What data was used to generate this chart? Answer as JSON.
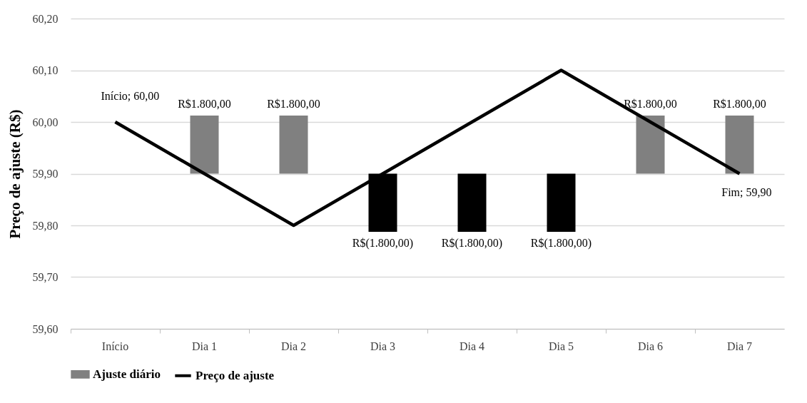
{
  "chart_data": {
    "type": "bar",
    "ylabel": "Preço de ajuste (R$)",
    "categories": [
      "Início",
      "Dia 1",
      "Dia 2",
      "Dia 3",
      "Dia 4",
      "Dia 5",
      "Dia 6",
      "Dia 7"
    ],
    "series": [
      {
        "name": "Ajuste diário",
        "axis": "y2",
        "color": "#808080",
        "colors": [
          null,
          "#808080",
          "#808080",
          "#000000",
          "#000000",
          "#000000",
          "#808080",
          "#808080"
        ],
        "values": [
          null,
          1800,
          1800,
          -1800,
          -1800,
          -1800,
          1800,
          1800
        ],
        "value_labels": [
          null,
          "R$1.800,00",
          "R$1.800,00",
          "R$(1.800,00)",
          "R$(1.800,00)",
          "R$(1.800,00)",
          "R$1.800,00",
          "R$1.800,00"
        ]
      },
      {
        "name": "Preço de ajuste",
        "type": "line",
        "color": "#000000",
        "values": [
          60.0,
          59.9,
          59.8,
          59.9,
          60.0,
          60.1,
          60.0,
          59.9
        ]
      }
    ],
    "ylim": [
      59.6,
      60.2
    ],
    "yticks": [
      {
        "value": 59.6,
        "label": "59,60"
      },
      {
        "value": 59.7,
        "label": "59,70"
      },
      {
        "value": 59.8,
        "label": "59,80"
      },
      {
        "value": 59.9,
        "label": "59,90"
      },
      {
        "value": 60.0,
        "label": "60,00"
      },
      {
        "value": 60.1,
        "label": "60,10"
      },
      {
        "value": 60.2,
        "label": "60,20"
      }
    ],
    "y2lim": [
      -4800,
      4800
    ],
    "grid": "y",
    "legend": "bottom",
    "annotations": [
      {
        "text": "Início;  60,00",
        "x": "Início",
        "y": 60.0
      },
      {
        "text": "Fim;  59,90",
        "x": "Dia 7",
        "y": 59.9
      }
    ]
  }
}
